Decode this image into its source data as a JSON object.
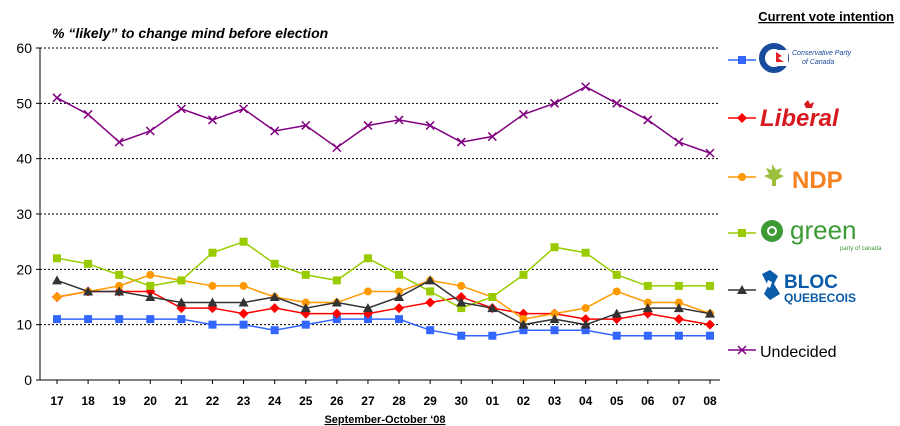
{
  "chart_data": {
    "type": "line",
    "title": "% “likely” to change mind before election",
    "xlabel": "September-October ‘08",
    "ylabel": "",
    "ylim": [
      0,
      60
    ],
    "yticks": [
      0,
      10,
      20,
      30,
      40,
      50,
      60
    ],
    "grid": "horizontal-dotted",
    "legend_title": "Current vote intention",
    "legend_position": "right",
    "categories": [
      "17",
      "18",
      "19",
      "20",
      "21",
      "22",
      "23",
      "24",
      "25",
      "26",
      "27",
      "28",
      "29",
      "30",
      "01",
      "02",
      "03",
      "04",
      "05",
      "06",
      "07",
      "08"
    ],
    "series": [
      {
        "name": "Conservative Party of Canada",
        "color": "#3366ff",
        "marker": "square",
        "values": [
          11,
          11,
          11,
          11,
          11,
          10,
          10,
          9,
          10,
          11,
          11,
          11,
          9,
          8,
          8,
          9,
          9,
          9,
          8,
          8,
          8,
          8
        ]
      },
      {
        "name": "Liberal",
        "color": "#ff0000",
        "marker": "diamond",
        "values": [
          15,
          16,
          16,
          16,
          13,
          13,
          12,
          13,
          12,
          12,
          12,
          13,
          14,
          15,
          13,
          12,
          12,
          11,
          11,
          12,
          11,
          10
        ]
      },
      {
        "name": "NDP",
        "color": "#ff9900",
        "marker": "circle",
        "values": [
          15,
          16,
          17,
          19,
          18,
          17,
          17,
          15,
          14,
          14,
          16,
          16,
          18,
          17,
          15,
          11,
          12,
          13,
          16,
          14,
          14,
          12
        ]
      },
      {
        "name": "green",
        "color": "#99cc00",
        "marker": "square",
        "values": [
          22,
          21,
          19,
          17,
          18,
          23,
          25,
          21,
          19,
          18,
          22,
          19,
          16,
          13,
          15,
          19,
          24,
          23,
          19,
          17,
          17,
          17
        ]
      },
      {
        "name": "BLOC QUEBECOIS",
        "color": "#333333",
        "marker": "triangle",
        "values": [
          18,
          16,
          16,
          15,
          14,
          14,
          14,
          15,
          13,
          14,
          13,
          15,
          18,
          14,
          13,
          10,
          11,
          10,
          12,
          13,
          13,
          12
        ]
      },
      {
        "name": "Undecided",
        "color": "#800080",
        "marker": "x",
        "values": [
          51,
          48,
          43,
          45,
          49,
          47,
          49,
          45,
          46,
          42,
          46,
          47,
          46,
          43,
          44,
          48,
          50,
          53,
          50,
          47,
          43,
          41
        ]
      }
    ]
  },
  "logos": {
    "conservative": {
      "text": "Conservative Party of Canada",
      "colors": {
        "blue": "#1a4a9c",
        "red": "#e41e26"
      }
    },
    "liberal": {
      "text": "Liberal",
      "color": "#d71920"
    },
    "ndp": {
      "text": "NDP",
      "color": "#f58220"
    },
    "green": {
      "text": "green",
      "subtext": "party of canada",
      "color": "#3d9b35"
    },
    "bloc": {
      "text_top": "BLOC",
      "text_bottom": "QUEBECOIS",
      "color": "#0a5ba8"
    }
  }
}
